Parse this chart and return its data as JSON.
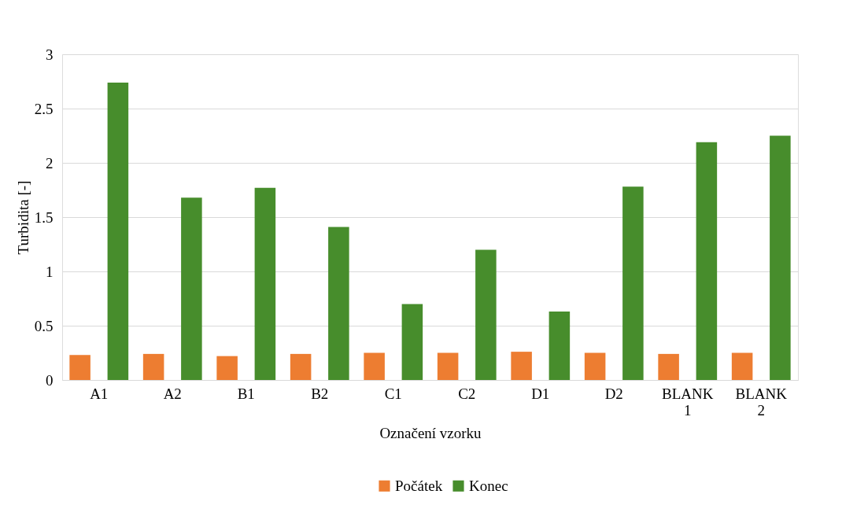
{
  "chart_data": {
    "type": "bar",
    "xlabel": "Označení vzorku",
    "ylabel": "Turbidita [-]",
    "categories": [
      "A1",
      "A2",
      "B1",
      "B2",
      "C1",
      "C2",
      "D1",
      "D2",
      "BLANK 1",
      "BLANK 2"
    ],
    "series": [
      {
        "name": "Počátek",
        "color": "#ed7d31",
        "values": [
          0.23,
          0.24,
          0.22,
          0.24,
          0.25,
          0.25,
          0.26,
          0.25,
          0.24,
          0.25
        ]
      },
      {
        "name": "Konec",
        "color": "#478d2c",
        "values": [
          2.74,
          1.68,
          1.77,
          1.41,
          0.7,
          1.2,
          0.63,
          1.78,
          2.19,
          2.25
        ]
      }
    ],
    "ylim": [
      0,
      3
    ],
    "yticks": [
      0,
      0.5,
      1,
      1.5,
      2,
      2.5,
      3
    ],
    "grid": "y",
    "legend": "bottom"
  }
}
